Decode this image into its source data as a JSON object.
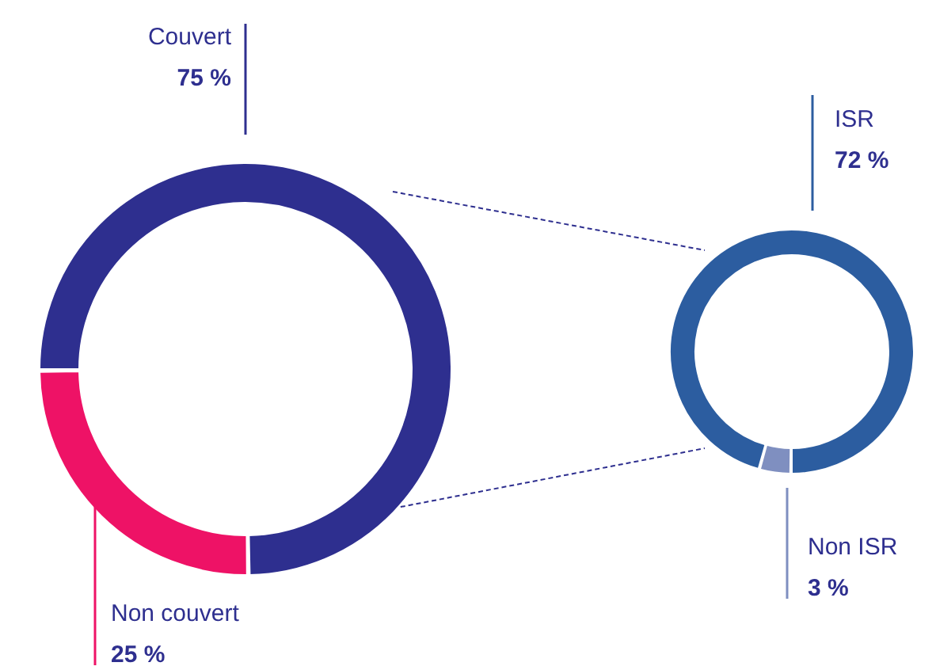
{
  "chart_data": [
    {
      "type": "donut",
      "categories": [
        "Couvert",
        "Non couvert"
      ],
      "values": [
        75,
        25
      ],
      "colors": [
        "#2e2f8f",
        "#ee1266"
      ],
      "value_labels": [
        "75 %",
        "25 %"
      ]
    },
    {
      "type": "donut",
      "categories": [
        "ISR",
        "Non ISR"
      ],
      "values": [
        72,
        3
      ],
      "colors": [
        "#2c5da0",
        "#7f8fc0"
      ],
      "value_labels": [
        "72 %",
        "3 %"
      ]
    }
  ]
}
